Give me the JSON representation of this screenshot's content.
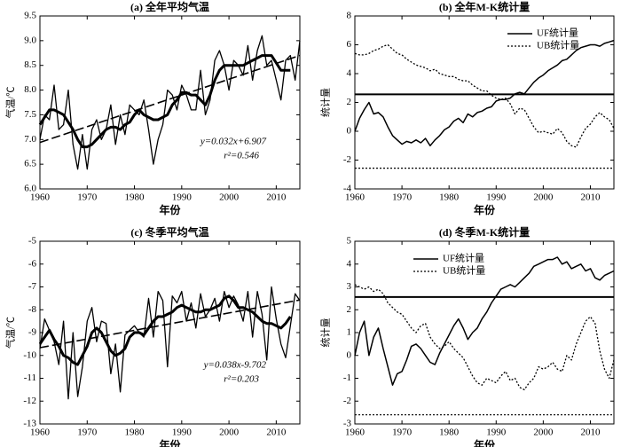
{
  "chart_data": [
    {
      "type": "line",
      "title": "(a) 全年平均气温",
      "x_label": "年份",
      "y_label": "气温/℃",
      "x": [
        1960,
        1961,
        1962,
        1963,
        1964,
        1965,
        1966,
        1967,
        1968,
        1969,
        1970,
        1971,
        1972,
        1973,
        1974,
        1975,
        1976,
        1977,
        1978,
        1979,
        1980,
        1981,
        1982,
        1983,
        1984,
        1985,
        1986,
        1987,
        1988,
        1989,
        1990,
        1991,
        1992,
        1993,
        1994,
        1995,
        1996,
        1997,
        1998,
        1999,
        2000,
        2001,
        2002,
        2003,
        2004,
        2005,
        2006,
        2007,
        2008,
        2009,
        2010,
        2011,
        2012,
        2013,
        2014,
        2015
      ],
      "series": [
        {
          "color": "#000000",
          "style": "solid",
          "width": 1.3,
          "values": [
            7.0,
            7.5,
            7.4,
            8.1,
            7.2,
            7.3,
            8.0,
            6.9,
            6.4,
            7.1,
            6.4,
            7.2,
            7.4,
            7.0,
            7.2,
            7.7,
            6.9,
            7.5,
            7.1,
            7.7,
            7.6,
            7.5,
            7.8,
            7.2,
            6.5,
            7.0,
            7.3,
            8.0,
            7.9,
            7.6,
            8.1,
            7.9,
            7.6,
            7.6,
            8.4,
            7.5,
            7.8,
            8.6,
            8.8,
            8.5,
            8.0,
            8.6,
            8.5,
            8.3,
            8.9,
            8.2,
            8.8,
            9.1,
            8.5,
            8.6,
            8.2,
            7.8,
            8.6,
            8.7,
            8.2,
            9.0
          ]
        },
        {
          "color": "#000000",
          "style": "solid",
          "width": 3,
          "values": [
            7.3,
            7.45,
            7.6,
            7.6,
            7.55,
            7.5,
            7.35,
            7.2,
            7.0,
            6.85,
            6.85,
            6.9,
            7.0,
            7.1,
            7.2,
            7.25,
            7.25,
            7.2,
            7.3,
            7.35,
            7.5,
            7.6,
            7.5,
            7.45,
            7.4,
            7.4,
            7.45,
            7.5,
            7.7,
            7.8,
            7.95,
            7.95,
            7.9,
            7.9,
            7.8,
            7.7,
            7.9,
            8.2,
            8.4,
            8.5,
            8.5,
            8.5,
            8.5,
            8.5,
            8.55,
            8.6,
            8.65,
            8.7,
            8.7,
            8.7,
            8.55,
            8.4,
            8.4,
            8.4,
            null,
            null
          ]
        },
        {
          "color": "#000000",
          "style": "dashed",
          "width": 1.6,
          "x": [
            1960,
            2015
          ],
          "values": [
            6.94,
            8.7
          ]
        }
      ],
      "annotations": [
        "y=0.032x+6.907",
        "r²=0.546"
      ],
      "xlim": [
        1960,
        2015
      ],
      "xticks": [
        1960,
        1970,
        1980,
        1990,
        2000,
        2010
      ],
      "ylim": [
        6,
        9.5
      ],
      "yticks": [
        {
          "value": 6,
          "label": "6.0"
        },
        6.5,
        {
          "value": 7,
          "label": "7.0"
        },
        7.5,
        {
          "value": 8,
          "label": "8.0"
        },
        8.5,
        {
          "value": 9,
          "label": "9.0"
        },
        9.5
      ]
    },
    {
      "type": "line",
      "title": "(b) 全年M-K统计量",
      "x_label": "年份",
      "y_label": "统计量",
      "legend": "upper right",
      "x": [
        1960,
        1961,
        1962,
        1963,
        1964,
        1965,
        1966,
        1967,
        1968,
        1969,
        1970,
        1971,
        1972,
        1973,
        1974,
        1975,
        1976,
        1977,
        1978,
        1979,
        1980,
        1981,
        1982,
        1983,
        1984,
        1985,
        1986,
        1987,
        1988,
        1989,
        1990,
        1991,
        1992,
        1993,
        1994,
        1995,
        1996,
        1997,
        1998,
        1999,
        2000,
        2001,
        2002,
        2003,
        2004,
        2005,
        2006,
        2007,
        2008,
        2009,
        2010,
        2011,
        2012,
        2013,
        2014,
        2015
      ],
      "series": [
        {
          "name": "UF统计量",
          "color": "#000000",
          "style": "solid",
          "width": 1.5,
          "values": [
            0,
            0.9,
            1.5,
            2.0,
            1.2,
            1.3,
            1.0,
            0.3,
            -0.3,
            -0.6,
            -0.9,
            -0.7,
            -0.8,
            -0.6,
            -0.8,
            -0.5,
            -1.0,
            -0.6,
            -0.3,
            0.1,
            0.3,
            0.7,
            0.9,
            0.6,
            1.2,
            1.0,
            1.3,
            1.4,
            1.6,
            1.7,
            2.1,
            2.2,
            2.2,
            2.3,
            2.6,
            2.7,
            2.6,
            3.0,
            3.4,
            3.7,
            3.9,
            4.2,
            4.4,
            4.6,
            4.9,
            5.0,
            5.3,
            5.6,
            5.8,
            5.9,
            6.0,
            6.0,
            5.9,
            6.1,
            6.2,
            6.3
          ]
        },
        {
          "name": "UB统计量",
          "color": "#000000",
          "style": "dotted",
          "width": 1.3,
          "values": [
            5.4,
            5.3,
            5.3,
            5.4,
            5.6,
            5.7,
            5.9,
            6.0,
            5.7,
            5.4,
            5.3,
            5.0,
            4.8,
            4.6,
            4.5,
            4.4,
            4.2,
            4.3,
            4.0,
            3.9,
            3.8,
            3.8,
            3.6,
            3.5,
            3.5,
            3.2,
            3.0,
            2.8,
            2.8,
            2.5,
            2.3,
            2.2,
            2.3,
            1.9,
            1.2,
            1.6,
            1.5,
            0.9,
            0.3,
            -0.1,
            0.0,
            -0.1,
            -0.2,
            0.2,
            -0.1,
            -0.7,
            -1.0,
            -1.1,
            -0.4,
            0.2,
            0.5,
            1.0,
            1.3,
            1.0,
            0.8,
            0.2
          ]
        }
      ],
      "hlines": [
        {
          "value": 2.56,
          "style": "solid"
        },
        {
          "value": -2.56,
          "style": "dotted"
        }
      ],
      "xlim": [
        1960,
        2015
      ],
      "xticks": [
        1960,
        1970,
        1980,
        1990,
        2000,
        2010
      ],
      "ylim": [
        -4,
        8
      ],
      "yticks": [
        -4,
        -2,
        0,
        2,
        4,
        6,
        8
      ]
    },
    {
      "type": "line",
      "title": "(c) 冬季平均气温",
      "x_label": "年份",
      "y_label": "气温/℃",
      "x": [
        1960,
        1961,
        1962,
        1963,
        1964,
        1965,
        1966,
        1967,
        1968,
        1969,
        1970,
        1971,
        1972,
        1973,
        1974,
        1975,
        1976,
        1977,
        1978,
        1979,
        1980,
        1981,
        1982,
        1983,
        1984,
        1985,
        1986,
        1987,
        1988,
        1989,
        1990,
        1991,
        1992,
        1993,
        1994,
        1995,
        1996,
        1997,
        1998,
        1999,
        2000,
        2001,
        2002,
        2003,
        2004,
        2005,
        2006,
        2007,
        2008,
        2009,
        2010,
        2011,
        2012,
        2013,
        2014,
        2015
      ],
      "series": [
        {
          "color": "#000000",
          "style": "solid",
          "width": 1.3,
          "values": [
            -9.7,
            -8.4,
            -8.9,
            -9.4,
            -10.4,
            -8.5,
            -11.9,
            -9.0,
            -11.8,
            -10.5,
            -8.5,
            -7.9,
            -9.4,
            -8.5,
            -8.6,
            -10.8,
            -9.5,
            -11.6,
            -9.1,
            -8.9,
            -8.7,
            -9.0,
            -9.2,
            -7.5,
            -9.2,
            -7.2,
            -7.6,
            -10.5,
            -7.4,
            -7.7,
            -7.2,
            -8.5,
            -7.7,
            -8.8,
            -7.3,
            -8.3,
            -8.0,
            -7.5,
            -8.5,
            -7.2,
            -7.9,
            -7.4,
            -7.8,
            -8.5,
            -7.2,
            -9.2,
            -7.2,
            -8.2,
            -10.2,
            -7.0,
            -8.4,
            -9.5,
            -10.1,
            -8.7,
            -7.3,
            -7.6
          ]
        },
        {
          "color": "#000000",
          "style": "solid",
          "width": 3,
          "values": [
            -9.5,
            -9.2,
            -8.9,
            -9.3,
            -9.6,
            -10.0,
            -10.1,
            -10.3,
            -10.4,
            -10.0,
            -9.6,
            -9.0,
            -8.8,
            -9.0,
            -9.4,
            -9.8,
            -10.0,
            -9.9,
            -9.7,
            -9.2,
            -9.0,
            -9.0,
            -9.1,
            -8.8,
            -8.5,
            -8.3,
            -8.3,
            -8.2,
            -8.1,
            -7.9,
            -7.8,
            -7.9,
            -8.0,
            -8.1,
            -8.1,
            -8.0,
            -8.0,
            -7.9,
            -7.8,
            -7.5,
            -7.4,
            -7.6,
            -7.9,
            -7.9,
            -8.0,
            -8.1,
            -8.3,
            -8.5,
            -8.6,
            -8.6,
            -8.7,
            -8.8,
            -8.6,
            -8.3,
            null,
            null
          ]
        },
        {
          "color": "#000000",
          "style": "dashed",
          "width": 1.6,
          "x": [
            1960,
            2015
          ],
          "values": [
            -9.66,
            -7.57
          ]
        }
      ],
      "annotations": [
        "y=0.038x-9.702",
        "r²=0.203"
      ],
      "xlim": [
        1960,
        2015
      ],
      "xticks": [
        1960,
        1970,
        1980,
        1990,
        2000,
        2010
      ],
      "ylim": [
        -13,
        -5
      ],
      "yticks": [
        -13,
        -12,
        -11,
        -10,
        -9,
        -8,
        -7,
        -6,
        -5
      ]
    },
    {
      "type": "line",
      "title": "(d) 冬季M-K统计量",
      "x_label": "年份",
      "y_label": "统计量",
      "legend": "upper center",
      "x": [
        1960,
        1961,
        1962,
        1963,
        1964,
        1965,
        1966,
        1967,
        1968,
        1969,
        1970,
        1971,
        1972,
        1973,
        1974,
        1975,
        1976,
        1977,
        1978,
        1979,
        1980,
        1981,
        1982,
        1983,
        1984,
        1985,
        1986,
        1987,
        1988,
        1989,
        1990,
        1991,
        1992,
        1993,
        1994,
        1995,
        1996,
        1997,
        1998,
        1999,
        2000,
        2001,
        2002,
        2003,
        2004,
        2005,
        2006,
        2007,
        2008,
        2009,
        2010,
        2011,
        2012,
        2013,
        2014,
        2015
      ],
      "series": [
        {
          "name": "UF统计量",
          "color": "#000000",
          "style": "solid",
          "width": 1.5,
          "values": [
            0,
            1.0,
            1.5,
            0.0,
            0.8,
            1.2,
            0.3,
            -0.5,
            -1.3,
            -0.8,
            -0.7,
            -0.2,
            0.4,
            0.5,
            0.3,
            0.0,
            -0.3,
            -0.4,
            0.1,
            0.5,
            0.9,
            1.3,
            1.6,
            1.2,
            0.7,
            1.0,
            1.2,
            1.6,
            1.9,
            2.3,
            2.6,
            2.9,
            3.0,
            3.1,
            3.0,
            3.2,
            3.4,
            3.6,
            3.9,
            4.0,
            4.1,
            4.2,
            4.2,
            4.3,
            4.0,
            4.1,
            3.8,
            3.9,
            4.0,
            3.7,
            3.8,
            3.4,
            3.3,
            3.5,
            3.6,
            3.7
          ]
        },
        {
          "name": "UB统计量",
          "color": "#000000",
          "style": "dotted",
          "width": 1.3,
          "values": [
            3.1,
            3.0,
            2.9,
            3.0,
            2.8,
            2.9,
            2.7,
            2.3,
            2.1,
            1.9,
            1.8,
            1.5,
            1.2,
            1.0,
            1.3,
            1.4,
            0.8,
            0.5,
            0.3,
            0.4,
            0.6,
            0.3,
            0.1,
            -0.1,
            -0.5,
            -0.9,
            -1.2,
            -1.3,
            -1.0,
            -1.1,
            -1.2,
            -0.9,
            -0.7,
            -1.1,
            -1.0,
            -1.4,
            -1.5,
            -1.2,
            -1.0,
            -0.5,
            -0.6,
            -0.5,
            -0.3,
            -0.6,
            -0.7,
            0.0,
            -0.2,
            0.5,
            1.0,
            1.5,
            1.7,
            1.4,
            0.2,
            -0.6,
            -1.0,
            -0.2
          ]
        }
      ],
      "hlines": [
        {
          "value": 2.56,
          "style": "solid"
        },
        {
          "value": -2.6,
          "style": "dotted"
        }
      ],
      "xlim": [
        1960,
        2015
      ],
      "xticks": [
        1960,
        1970,
        1980,
        1990,
        2000,
        2010
      ],
      "ylim": [
        -3,
        5
      ],
      "yticks": [
        -3,
        -2,
        -1,
        0,
        1,
        2,
        3,
        4,
        5
      ]
    }
  ]
}
